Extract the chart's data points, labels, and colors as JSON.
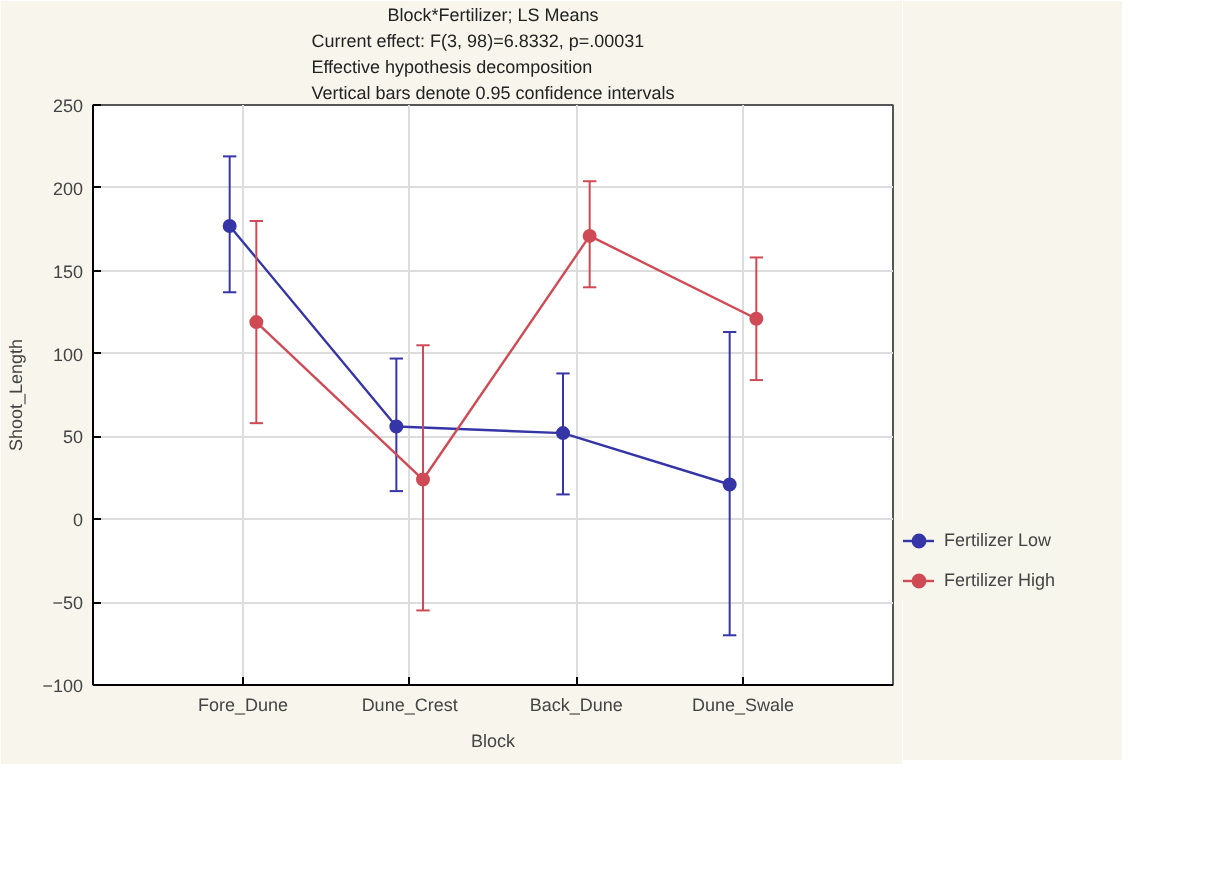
{
  "chart_data": {
    "type": "line",
    "title": "Block*Fertilizer; LS Means",
    "subtitle": "Current effect: F(3, 98)=6.8332, p=.00031\nEffective hypothesis decomposition\nVertical bars denote 0.95 confidence intervals",
    "xlabel": "Block",
    "ylabel": "Shoot_Length",
    "categories": [
      "Fore_Dune",
      "Dune_Crest",
      "Back_Dune",
      "Dune_Swale"
    ],
    "series": [
      {
        "name": "Fertilizer Low",
        "color": "#3535a8",
        "values": [
          177,
          56,
          52,
          21
        ],
        "errors": [
          [
            137,
            219
          ],
          [
            17,
            97
          ],
          [
            15,
            88
          ],
          [
            -70,
            113
          ]
        ]
      },
      {
        "name": "Fertilizer High",
        "color": "#d04a55",
        "values": [
          119,
          24,
          171,
          121
        ],
        "errors": [
          [
            58,
            180
          ],
          [
            -55,
            105
          ],
          [
            140,
            204
          ],
          [
            84,
            158
          ]
        ]
      }
    ],
    "ylim": [
      -100,
      250
    ],
    "yticks": [
      -100,
      -50,
      0,
      50,
      100,
      150,
      200,
      250
    ],
    "grid": true,
    "legend": "bottom right",
    "marker": "circle",
    "line_style": "solid"
  }
}
